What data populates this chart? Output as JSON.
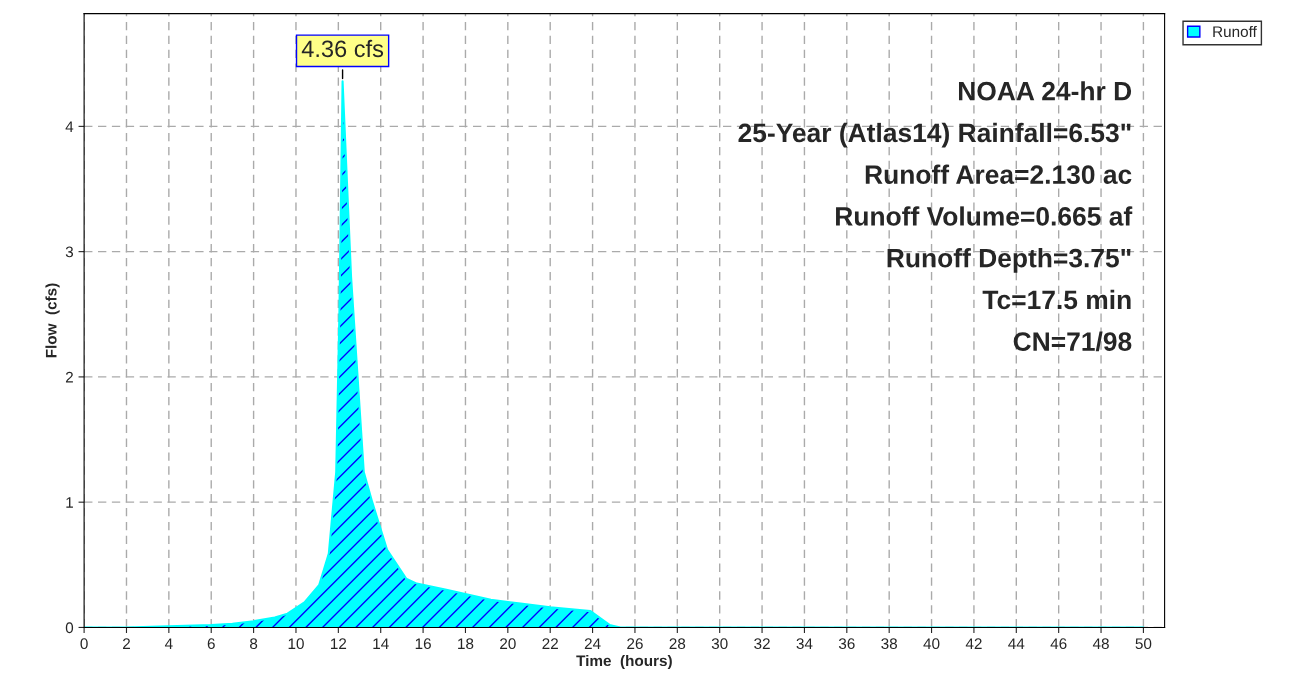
{
  "chart_data": {
    "type": "area",
    "xlabel": "Time  (hours)",
    "ylabel": "Flow  (cfs)",
    "x": [
      0,
      2,
      4,
      6,
      7,
      8,
      9,
      9.6,
      10.4,
      11.1,
      11.55,
      11.9,
      12.05,
      12.2,
      12.6,
      13.2,
      13.6,
      14.3,
      15.2,
      15.7,
      17.1,
      19.2,
      20.6,
      22,
      23.9,
      24.8,
      25.3,
      30,
      40,
      50
    ],
    "series": [
      {
        "name": "Runoff",
        "color": "#00ffff",
        "values": [
          0,
          0,
          0.01,
          0.02,
          0.03,
          0.05,
          0.08,
          0.11,
          0.2,
          0.34,
          0.59,
          1.24,
          2.5,
          4.36,
          2.8,
          1.24,
          1.0,
          0.62,
          0.39,
          0.35,
          0.3,
          0.22,
          0.19,
          0.16,
          0.13,
          0.02,
          0,
          0,
          0,
          0
        ]
      }
    ],
    "xlim": [
      0,
      51
    ],
    "ylim": [
      0,
      4.9
    ],
    "xticks": [
      0,
      2,
      4,
      6,
      8,
      10,
      12,
      14,
      16,
      18,
      20,
      22,
      24,
      26,
      28,
      30,
      32,
      34,
      36,
      38,
      40,
      42,
      44,
      46,
      48,
      50
    ],
    "yticks": [
      0,
      1,
      2,
      3,
      4
    ],
    "grid": true,
    "legend": "top right",
    "annotations": [
      {
        "text": "4.36 cfs",
        "x": 12.2,
        "y": 4.36
      },
      "NOAA 24-hr D",
      "25-Year (Atlas14) Rainfall=6.53\"",
      "Runoff Area=2.130 ac",
      "Runoff Volume=0.665 af",
      "Runoff Depth=3.75\"",
      "Tc=17.5 min",
      "CN=71/98"
    ]
  }
}
